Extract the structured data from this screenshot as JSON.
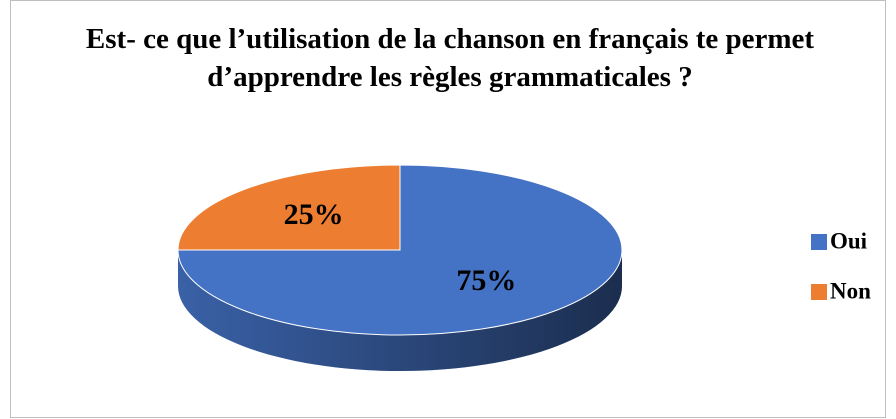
{
  "chart_data": {
    "type": "pie3d",
    "title": "Est- ce que l’utilisation de la chanson en français te permet d’apprendre les règles grammaticales ?",
    "categories": [
      "Oui",
      "Non"
    ],
    "values": [
      75,
      25
    ],
    "value_labels": [
      "75%",
      "25%"
    ],
    "colors": [
      "#4472c4",
      "#ed7d31"
    ],
    "legend": "right"
  }
}
